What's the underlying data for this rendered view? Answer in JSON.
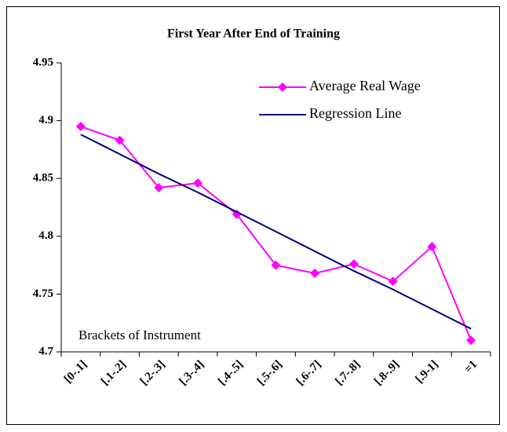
{
  "chart_data": {
    "type": "line",
    "title": "First Year After End of Training",
    "categories": [
      "[0-.1]",
      "[.1-.2]",
      "[.2-.3]",
      "[.3-.4]",
      "[.4-.5]",
      "[.5-.6]",
      "[.6-.7]",
      "[.7-.8]",
      "[.8-.9]",
      "[.9-1]",
      "=1"
    ],
    "series": [
      {
        "name": "Average Real Wage",
        "color": "#ff00ff",
        "marker": "diamond",
        "values": [
          4.895,
          4.883,
          4.842,
          4.846,
          4.819,
          4.775,
          4.768,
          4.776,
          4.761,
          4.791,
          4.71
        ]
      },
      {
        "name": "Regression Line",
        "color": "#000080",
        "values": [
          4.888,
          4.871,
          4.854,
          4.838,
          4.821,
          4.804,
          4.787,
          4.77,
          4.754,
          4.737,
          4.72
        ]
      }
    ],
    "ylim": [
      4.7,
      4.95
    ],
    "yticks": [
      4.7,
      4.75,
      4.8,
      4.85,
      4.9,
      4.95
    ],
    "annotation": "Brackets of Instrument",
    "legend": "top-right"
  }
}
